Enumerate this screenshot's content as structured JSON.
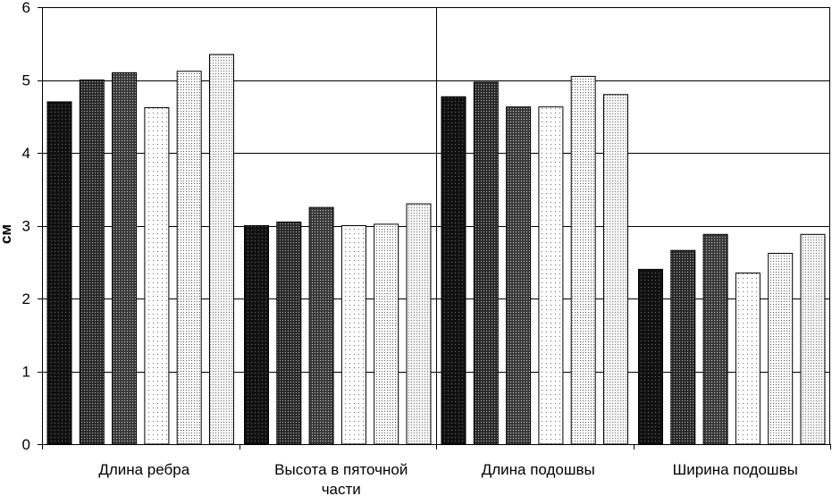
{
  "chart_data": {
    "type": "bar",
    "title": "",
    "xlabel": "",
    "ylabel": "см",
    "ylim": [
      0,
      6
    ],
    "yticks": [
      "0",
      "1",
      "2",
      "3",
      "4",
      "5",
      "6"
    ],
    "grid": true,
    "categories": [
      [
        "Длина ребра"
      ],
      [
        "Высота в пяточной",
        "части"
      ],
      [
        "Длина подошвы"
      ],
      [
        "Ширина подошвы"
      ]
    ],
    "series": [
      {
        "values": [
          4.7,
          3.0,
          4.77,
          2.4
        ],
        "pattern": "dots-on-black",
        "fill": "#111111",
        "dot": "#6e6e6e",
        "spacing": 4
      },
      {
        "values": [
          5.0,
          3.05,
          4.97,
          2.66
        ],
        "pattern": "dots-on-black",
        "fill": "#2a2a2a",
        "dot": "#bdbdbd",
        "spacing": 3
      },
      {
        "values": [
          5.1,
          3.25,
          4.63,
          2.88
        ],
        "pattern": "dots-on-black",
        "fill": "#3a3a3a",
        "dot": "#d0d0d0",
        "spacing": 3
      },
      {
        "values": [
          4.62,
          3.0,
          4.63,
          2.35
        ],
        "pattern": "dots-on-white",
        "fill": "#ffffff",
        "dot": "#666666",
        "spacing": 5
      },
      {
        "values": [
          5.12,
          3.02,
          5.05,
          2.62
        ],
        "pattern": "dots-on-white",
        "fill": "#ffffff",
        "dot": "#555555",
        "spacing": 3
      },
      {
        "values": [
          5.35,
          3.3,
          4.8,
          2.88
        ],
        "pattern": "dots-on-white",
        "fill": "#f4f4f4",
        "dot": "#777777",
        "spacing": 3
      }
    ]
  }
}
